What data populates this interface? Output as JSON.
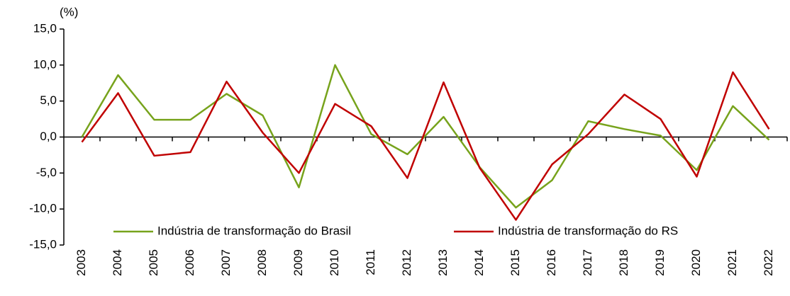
{
  "chart_data": {
    "type": "line",
    "y_label": "(%)",
    "categories": [
      "2003",
      "2004",
      "2005",
      "2006",
      "2007",
      "2008",
      "2009",
      "2010",
      "2011",
      "2012",
      "2013",
      "2014",
      "2015",
      "2016",
      "2017",
      "2018",
      "2019",
      "2020",
      "2021",
      "2022"
    ],
    "series": [
      {
        "name": "Indústria de transformação do Brasil",
        "color": "#77a31c",
        "values": [
          0.0,
          8.6,
          2.4,
          2.4,
          6.0,
          3.0,
          -7.0,
          10.0,
          0.4,
          -2.4,
          2.8,
          -4.2,
          -9.8,
          -6.0,
          2.2,
          1.1,
          0.2,
          -4.6,
          4.3,
          -0.4
        ]
      },
      {
        "name": "Indústria de transformação do RS",
        "color": "#c00000",
        "values": [
          -0.7,
          6.1,
          -2.6,
          -2.1,
          7.7,
          0.6,
          -5.0,
          4.6,
          1.5,
          -5.7,
          7.6,
          -4.3,
          -11.5,
          -3.8,
          0.4,
          5.9,
          2.5,
          -5.5,
          9.0,
          1.1
        ]
      }
    ],
    "ylim": [
      -15,
      15
    ],
    "yticks": [
      {
        "value": -15,
        "label": "-15,0"
      },
      {
        "value": -10,
        "label": "-10,0"
      },
      {
        "value": -5,
        "label": "-5,0"
      },
      {
        "value": 0,
        "label": "0,0"
      },
      {
        "value": 5,
        "label": "5,0"
      },
      {
        "value": 10,
        "label": "10,0"
      },
      {
        "value": 15,
        "label": "15,0"
      }
    ],
    "legend": "bottom"
  }
}
